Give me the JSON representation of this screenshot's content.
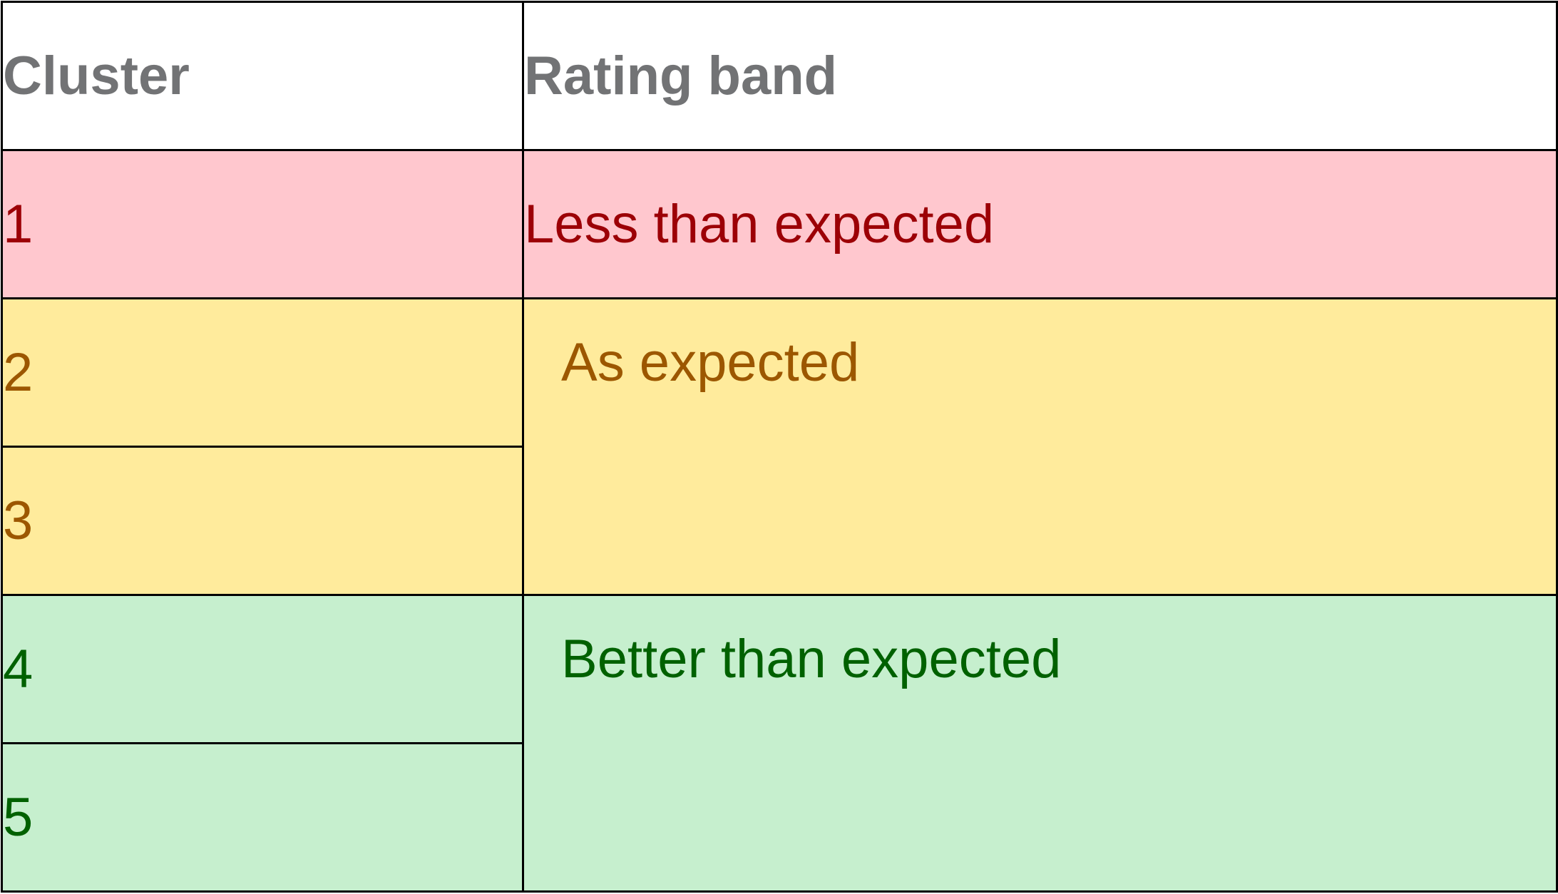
{
  "table": {
    "headers": {
      "cluster": "Cluster",
      "rating_band": "Rating band"
    },
    "clusters": [
      "1",
      "2",
      "3",
      "4",
      "5"
    ],
    "bands": [
      {
        "label": "Less than expected",
        "clusters": [
          "1"
        ],
        "fill_color": "#ffc7ce",
        "text_color": "#9c0006"
      },
      {
        "label": "As expected",
        "clusters": [
          "2",
          "3"
        ],
        "fill_color": "#ffeb9c",
        "text_color": "#9c5700"
      },
      {
        "label": "Better than expected",
        "clusters": [
          "4",
          "5"
        ],
        "fill_color": "#c6efce",
        "text_color": "#006100"
      }
    ]
  }
}
